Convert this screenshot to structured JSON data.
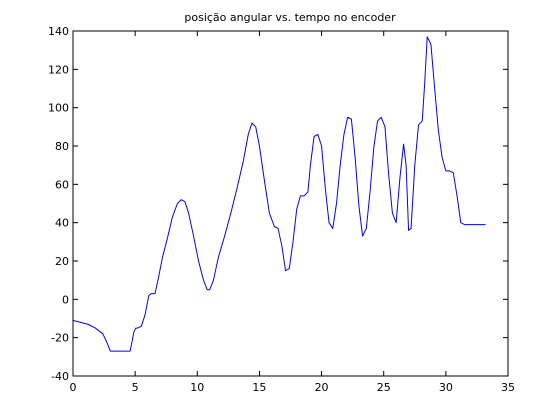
{
  "chart_data": {
    "type": "line",
    "title": "posição angular vs. tempo no encoder",
    "xlabel": "",
    "ylabel": "",
    "xlim": [
      0,
      35
    ],
    "ylim": [
      -40,
      140
    ],
    "xticks": [
      0,
      5,
      10,
      15,
      20,
      25,
      30,
      35
    ],
    "yticks": [
      -40,
      -20,
      0,
      20,
      40,
      60,
      80,
      100,
      120,
      140
    ],
    "grid": false,
    "line_color": "#0000ff",
    "series": [
      {
        "x": [
          0,
          0.6,
          1.2,
          1.8,
          2.4,
          2.7,
          3.0,
          3.3,
          3.6,
          4.0,
          4.6,
          4.9,
          5.05,
          5.2,
          5.5,
          5.8,
          6.1,
          6.3,
          6.6,
          6.9,
          7.2,
          7.6,
          8.0,
          8.4,
          8.7,
          9.0,
          9.3,
          9.7,
          10.1,
          10.5,
          10.8,
          11.0,
          11.3,
          11.7,
          12.2,
          12.7,
          13.2,
          13.7,
          14.1,
          14.4,
          14.7,
          15.0,
          15.4,
          15.8,
          16.2,
          16.5,
          16.8,
          17.1,
          17.4,
          17.7,
          18.0,
          18.3,
          18.6,
          18.9,
          19.1,
          19.4,
          19.7,
          20.0,
          20.3,
          20.6,
          20.9,
          21.2,
          21.5,
          21.8,
          22.1,
          22.4,
          22.7,
          23.0,
          23.3,
          23.6,
          23.9,
          24.2,
          24.5,
          24.8,
          25.1,
          25.4,
          25.7,
          26.0,
          26.3,
          26.6,
          26.8,
          27.0,
          27.2,
          27.5,
          27.8,
          28.1,
          28.3,
          28.5,
          28.8,
          29.1,
          29.4,
          29.7,
          30.0,
          30.3,
          30.6,
          30.9,
          31.2,
          31.5,
          32.0,
          32.5,
          33.2
        ],
        "y": [
          -11,
          -12,
          -13,
          -15,
          -18,
          -22,
          -27,
          -27,
          -27,
          -27,
          -27,
          -17,
          -15,
          -15,
          -14,
          -8,
          2,
          3,
          3,
          12,
          22,
          32,
          43,
          50,
          52,
          51,
          45,
          33,
          20,
          10,
          5,
          5,
          10,
          22,
          33,
          45,
          58,
          72,
          86,
          92,
          90,
          80,
          62,
          45,
          38,
          37,
          28,
          15,
          16,
          30,
          47,
          54,
          54,
          56,
          70,
          85,
          86,
          80,
          58,
          40,
          37,
          50,
          70,
          86,
          95,
          94,
          74,
          49,
          33,
          37,
          56,
          79,
          93,
          95,
          90,
          65,
          45,
          40,
          63,
          81,
          70,
          36,
          37,
          70,
          91,
          93,
          113,
          137,
          133,
          110,
          88,
          74,
          67,
          67,
          66,
          54,
          40,
          39,
          39,
          39,
          39
        ]
      }
    ]
  }
}
